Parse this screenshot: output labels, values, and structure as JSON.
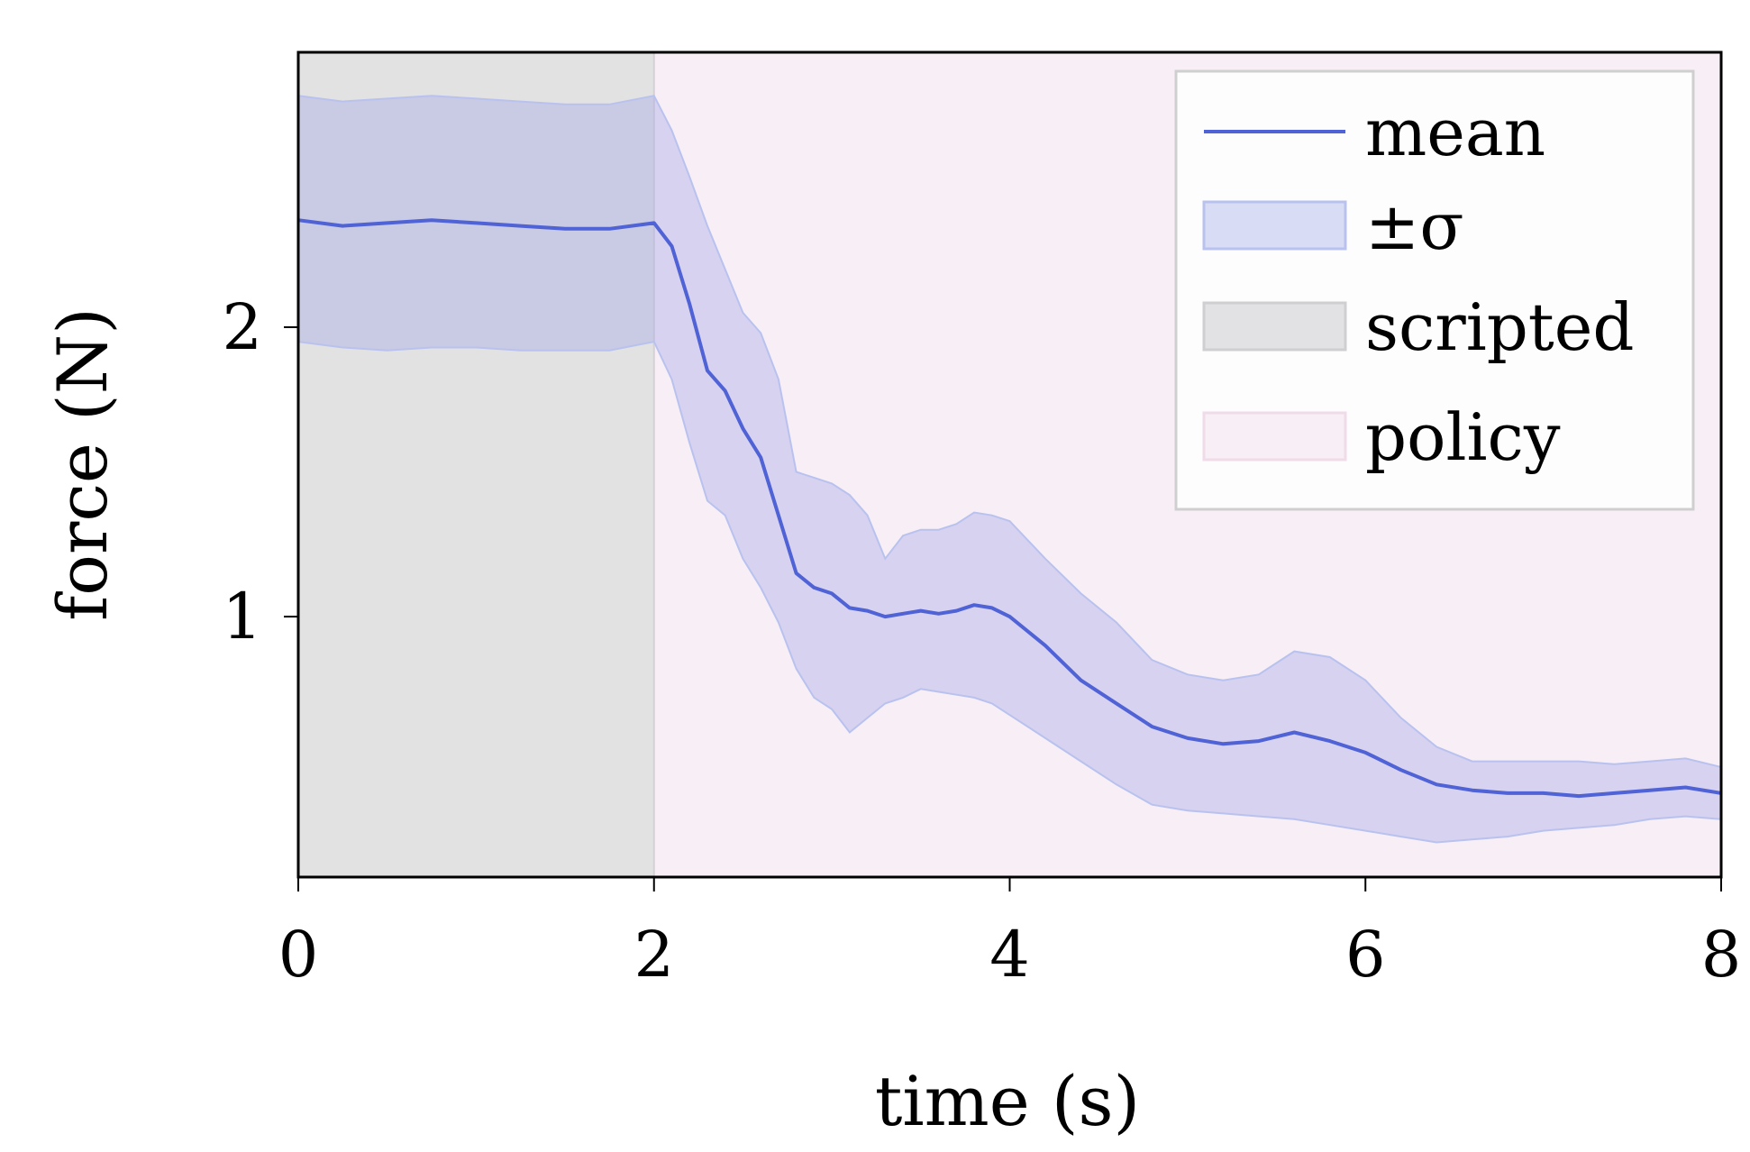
{
  "chart_data": {
    "type": "line",
    "title": "",
    "xlabel": "time (s)",
    "ylabel": "force (N)",
    "xlim": [
      0,
      8
    ],
    "ylim": [
      0.1,
      2.95
    ],
    "xticks": [
      0,
      2,
      4,
      6,
      8
    ],
    "xtick_labels": [
      "0",
      "2",
      "4",
      "6",
      "8"
    ],
    "yticks": [
      1,
      2
    ],
    "ytick_labels": [
      "1",
      "2"
    ],
    "grid": false,
    "legend_position": "top-right",
    "regions": [
      {
        "name": "scripted",
        "x_start": 0,
        "x_end": 2,
        "color": "#e2e2e2"
      },
      {
        "name": "policy",
        "x_start": 2,
        "x_end": 8,
        "color": "#f8eff6"
      }
    ],
    "series": [
      {
        "name": "mean",
        "color": "#4f62d6",
        "x": [
          0,
          0.25,
          0.5,
          0.75,
          1.0,
          1.25,
          1.5,
          1.75,
          2.0,
          2.1,
          2.2,
          2.3,
          2.4,
          2.5,
          2.6,
          2.7,
          2.8,
          2.9,
          3.0,
          3.1,
          3.2,
          3.3,
          3.4,
          3.5,
          3.6,
          3.7,
          3.8,
          3.9,
          4.0,
          4.2,
          4.4,
          4.6,
          4.8,
          5.0,
          5.2,
          5.4,
          5.6,
          5.8,
          6.0,
          6.2,
          6.4,
          6.6,
          6.8,
          7.0,
          7.2,
          7.4,
          7.6,
          7.8,
          8.0
        ],
        "values": [
          2.37,
          2.35,
          2.36,
          2.37,
          2.36,
          2.35,
          2.34,
          2.34,
          2.36,
          2.28,
          2.08,
          1.85,
          1.78,
          1.65,
          1.55,
          1.35,
          1.15,
          1.1,
          1.08,
          1.03,
          1.02,
          1.0,
          1.01,
          1.02,
          1.01,
          1.02,
          1.04,
          1.03,
          1.0,
          0.9,
          0.78,
          0.7,
          0.62,
          0.58,
          0.56,
          0.57,
          0.6,
          0.57,
          0.53,
          0.47,
          0.42,
          0.4,
          0.39,
          0.39,
          0.38,
          0.39,
          0.4,
          0.41,
          0.39
        ]
      },
      {
        "name": "±σ",
        "color": "#b9c2ef",
        "x": [
          0,
          0.25,
          0.5,
          0.75,
          1.0,
          1.25,
          1.5,
          1.75,
          2.0,
          2.1,
          2.2,
          2.3,
          2.4,
          2.5,
          2.6,
          2.7,
          2.8,
          2.9,
          3.0,
          3.1,
          3.2,
          3.3,
          3.4,
          3.5,
          3.6,
          3.7,
          3.8,
          3.9,
          4.0,
          4.2,
          4.4,
          4.6,
          4.8,
          5.0,
          5.2,
          5.4,
          5.6,
          5.8,
          6.0,
          6.2,
          6.4,
          6.6,
          6.8,
          7.0,
          7.2,
          7.4,
          7.6,
          7.8,
          8.0
        ],
        "lower": [
          1.95,
          1.93,
          1.92,
          1.93,
          1.93,
          1.92,
          1.92,
          1.92,
          1.95,
          1.82,
          1.6,
          1.4,
          1.35,
          1.2,
          1.1,
          0.98,
          0.82,
          0.72,
          0.68,
          0.6,
          0.65,
          0.7,
          0.72,
          0.75,
          0.74,
          0.73,
          0.72,
          0.7,
          0.66,
          0.58,
          0.5,
          0.42,
          0.35,
          0.33,
          0.32,
          0.31,
          0.3,
          0.28,
          0.26,
          0.24,
          0.22,
          0.23,
          0.24,
          0.26,
          0.27,
          0.28,
          0.3,
          0.31,
          0.3
        ],
        "upper": [
          2.8,
          2.78,
          2.79,
          2.8,
          2.79,
          2.78,
          2.77,
          2.77,
          2.8,
          2.68,
          2.52,
          2.35,
          2.2,
          2.05,
          1.98,
          1.82,
          1.5,
          1.48,
          1.46,
          1.42,
          1.35,
          1.2,
          1.28,
          1.3,
          1.3,
          1.32,
          1.36,
          1.35,
          1.33,
          1.2,
          1.08,
          0.98,
          0.85,
          0.8,
          0.78,
          0.8,
          0.88,
          0.86,
          0.78,
          0.65,
          0.55,
          0.5,
          0.5,
          0.5,
          0.5,
          0.49,
          0.5,
          0.51,
          0.48
        ]
      }
    ],
    "legend": [
      {
        "label": "mean",
        "kind": "line",
        "color": "#4f62d6"
      },
      {
        "label": "±σ",
        "kind": "patch",
        "color": "#d8dcf4",
        "edge": "#b9c2ef"
      },
      {
        "label": "scripted",
        "kind": "patch",
        "color": "#e2e2e4",
        "edge": "#cfcfd2"
      },
      {
        "label": "policy",
        "kind": "patch",
        "color": "#f8eef5",
        "edge": "#f0dbe8"
      }
    ]
  }
}
